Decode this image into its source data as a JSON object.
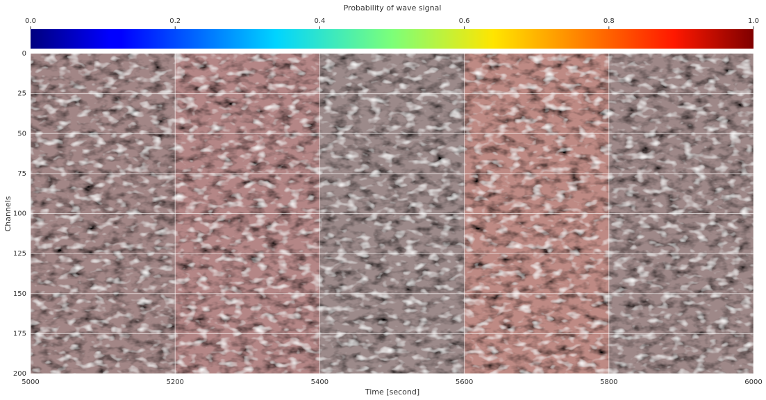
{
  "chart_data": {
    "type": "heatmap",
    "title": "Probability of wave signal",
    "xlabel": "Time [second]",
    "ylabel": "Channels",
    "xlim": [
      5000,
      6000
    ],
    "xticks": [
      5000,
      5200,
      5400,
      5600,
      5800,
      6000
    ],
    "ylim": [
      200,
      0
    ],
    "yticks": [
      0,
      25,
      50,
      75,
      100,
      125,
      150,
      175,
      200
    ],
    "colormap": "jet",
    "clim": [
      0,
      1
    ],
    "cticks": [
      {
        "value": 0,
        "label": "0.0"
      },
      0.2,
      0.4,
      0.6,
      0.8,
      {
        "value": 1,
        "label": "1.0"
      }
    ],
    "grid": true
  }
}
